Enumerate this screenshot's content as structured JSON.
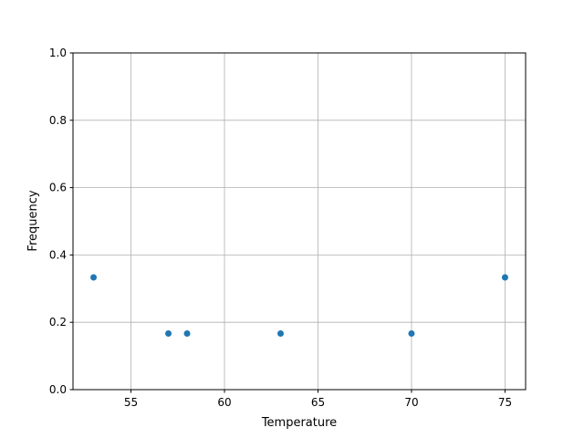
{
  "chart_data": {
    "type": "scatter",
    "title": "",
    "xlabel": "Temperature",
    "ylabel": "Frequency",
    "x": [
      53,
      57,
      58,
      63,
      70,
      75
    ],
    "y": [
      0.3333,
      0.1667,
      0.1667,
      0.1667,
      0.1667,
      0.3333
    ],
    "xlim": [
      51.9,
      76.1
    ],
    "ylim": [
      0,
      1
    ],
    "xticks": [
      "55",
      "60",
      "65",
      "70",
      "75"
    ],
    "xtick_values": [
      55,
      60,
      65,
      70,
      75
    ],
    "yticks": [
      "0.0",
      "0.2",
      "0.4",
      "0.6",
      "0.8",
      "1.0"
    ],
    "ytick_values": [
      0,
      0.2,
      0.4,
      0.6,
      0.8,
      1.0
    ],
    "grid": true,
    "marker_color": "#1f77b4"
  }
}
